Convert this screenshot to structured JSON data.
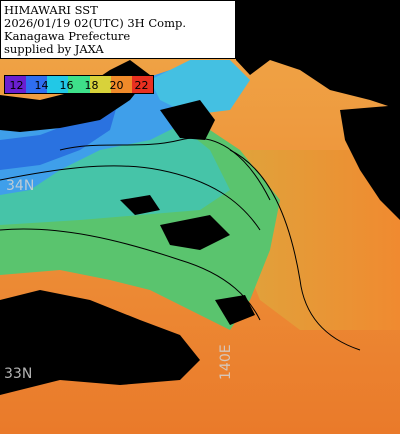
{
  "header": {
    "line1": "HIMAWARI SST",
    "line2": "2026/01/19 02(UTC) 3H Comp.",
    "line3": "Kanagawa Prefecture",
    "line4": "supplied by JAXA"
  },
  "colorbar": {
    "labels": [
      "12",
      "14",
      "16",
      "18",
      "20",
      "22"
    ],
    "colors": [
      "#6a1fd0",
      "#2f6ef0",
      "#22c8e6",
      "#3ee08a",
      "#d8d23a",
      "#f08a2a",
      "#e83020"
    ]
  },
  "grid_labels": {
    "lat_34": "34N",
    "lat_33": "33N",
    "lon_140": "140E"
  },
  "palette": {
    "land": "#000000",
    "cold": "#3a8de6",
    "cyan": "#3ad0d8",
    "green": "#56c870",
    "warm": "#e0983a",
    "hot": "#ec7a28"
  }
}
